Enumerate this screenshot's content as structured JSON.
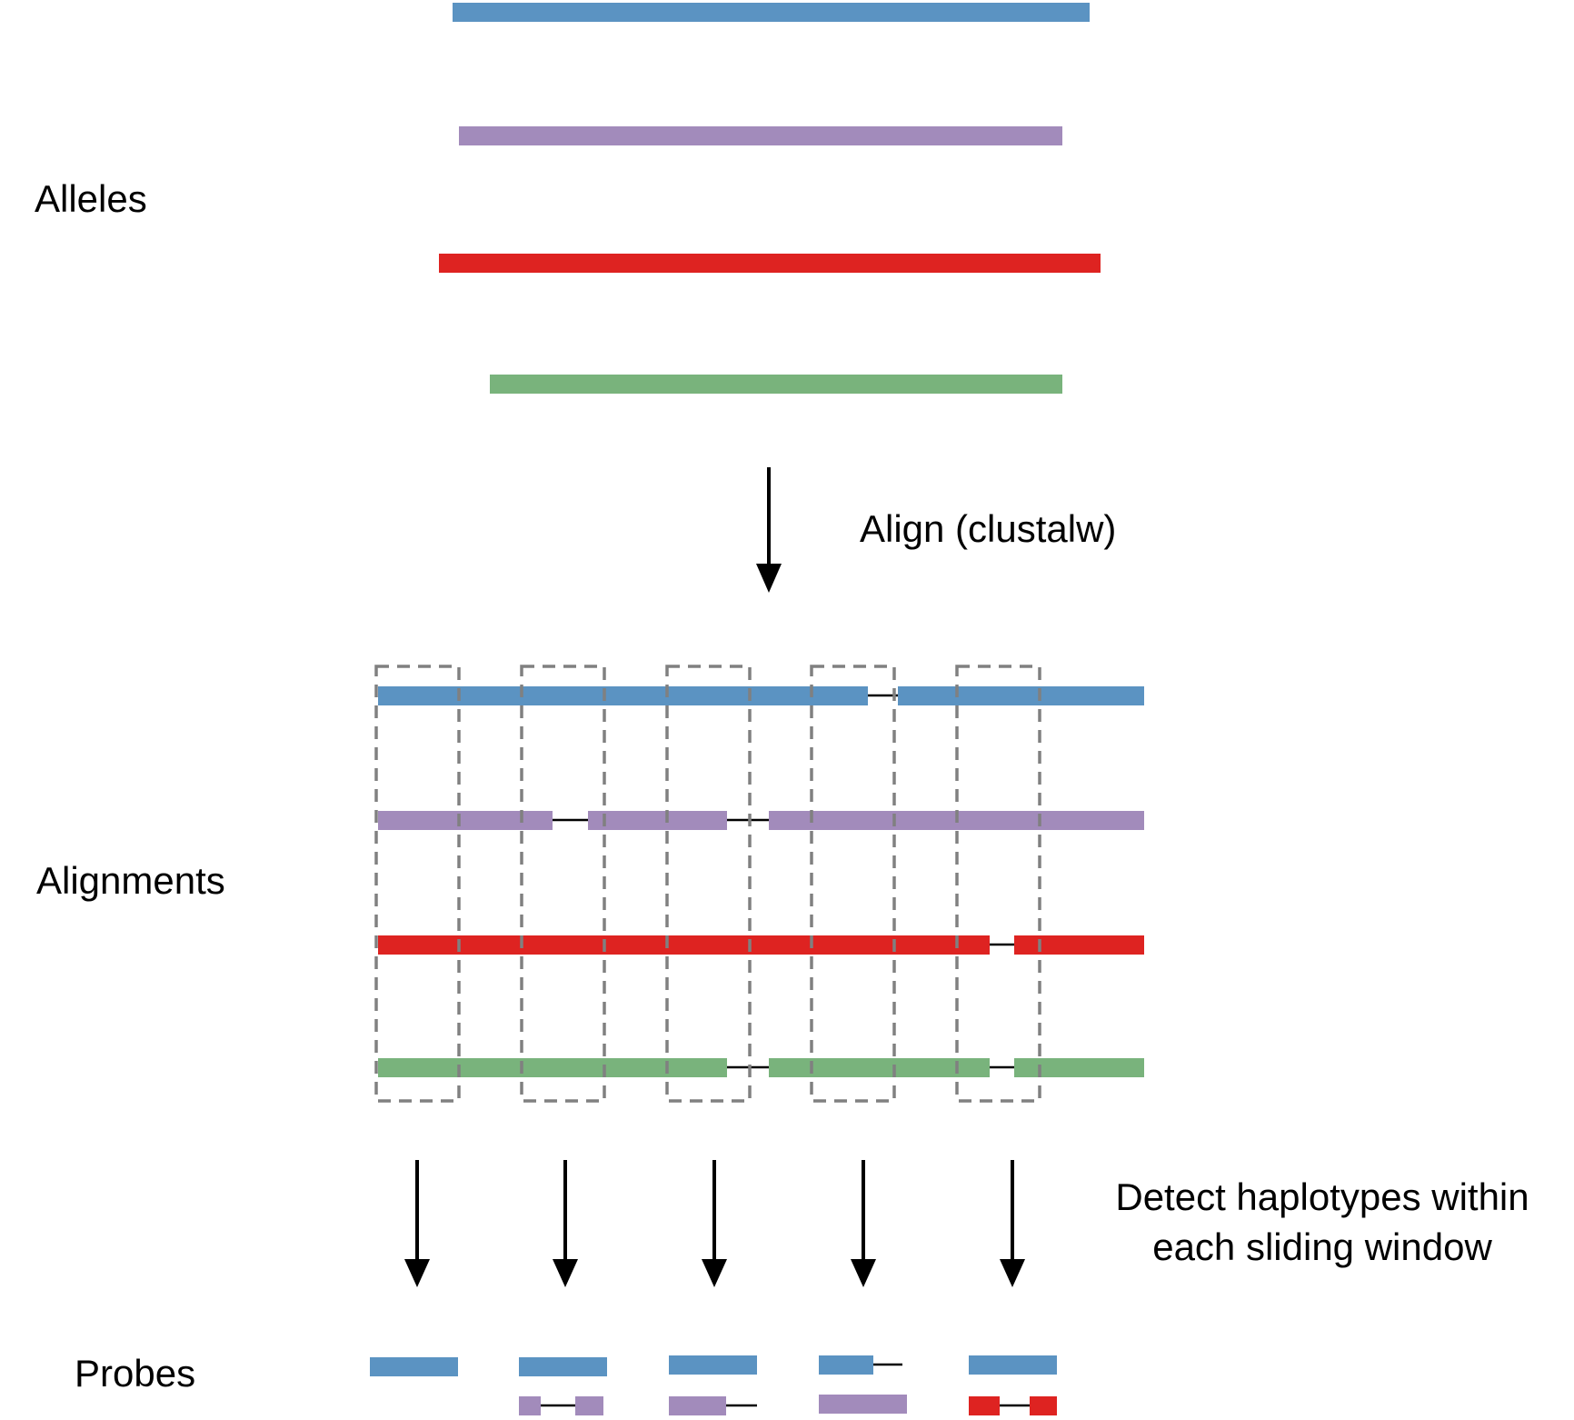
{
  "labels": {
    "alleles": "Alleles",
    "alignments": "Alignments",
    "probes": "Probes",
    "align_step": "Align (clustalw)",
    "detect_step_line1": "Detect haplotypes within",
    "detect_step_line2": "each sliding window"
  },
  "colors": {
    "blue": "#5b93c2",
    "purple": "#a28bbb",
    "red": "#de2321",
    "green": "#79b37c",
    "gap": "#000000",
    "window": "#808080",
    "arrow": "#000000"
  },
  "alleles": [
    {
      "color": "blue"
    },
    {
      "color": "purple"
    },
    {
      "color": "red"
    },
    {
      "color": "green"
    }
  ],
  "alignments": [
    {
      "color": "blue"
    },
    {
      "color": "purple"
    },
    {
      "color": "red"
    },
    {
      "color": "green"
    }
  ],
  "windows": 5
}
